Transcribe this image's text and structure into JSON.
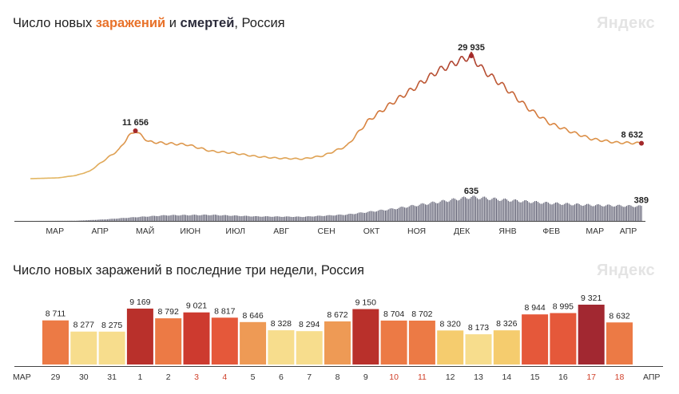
{
  "top": {
    "title_prefix": "Число новых ",
    "title_cases": "заражений",
    "title_and": " и ",
    "title_deaths": "смертей",
    "title_suffix": ", Россия",
    "brand": "Яндекс"
  },
  "bottom": {
    "title": "Число новых заражений в последние три недели, Россия",
    "brand": "Яндекс"
  },
  "colors": {
    "cases_low": "#e3b864",
    "cases_mid": "#d9823e",
    "cases_high": "#a8382d",
    "deaths_bar": "#5a5a6e",
    "axis": "#444444",
    "peak_dot": "#a3282a"
  },
  "chart_data": [
    {
      "type": "line",
      "title": "Число новых заражений и смертей, Россия",
      "x_ticks": [
        "МАР",
        "АПР",
        "МАЙ",
        "ИЮН",
        "ИЮЛ",
        "АВГ",
        "СЕН",
        "ОКТ",
        "НОЯ",
        "ДЕК",
        "ЯНВ",
        "ФЕВ",
        "МАР",
        "АПР"
      ],
      "x_range": [
        "2020-03-01",
        "2021-04-18"
      ],
      "series": [
        {
          "name": "заражений",
          "points": [
            [
              "2020-03-01",
              0
            ],
            [
              "2020-03-20",
              200
            ],
            [
              "2020-04-01",
              800
            ],
            [
              "2020-04-10",
              1800
            ],
            [
              "2020-04-20",
              4500
            ],
            [
              "2020-04-30",
              7100
            ],
            [
              "2020-05-06",
              10200
            ],
            [
              "2020-05-11",
              11656
            ],
            [
              "2020-05-20",
              9000
            ],
            [
              "2020-06-01",
              8600
            ],
            [
              "2020-06-15",
              8300
            ],
            [
              "2020-07-01",
              6700
            ],
            [
              "2020-07-15",
              6300
            ],
            [
              "2020-08-01",
              5400
            ],
            [
              "2020-08-15",
              5000
            ],
            [
              "2020-09-01",
              4800
            ],
            [
              "2020-09-15",
              5600
            ],
            [
              "2020-10-01",
              8000
            ],
            [
              "2020-10-15",
              14000
            ],
            [
              "2020-11-01",
              18600
            ],
            [
              "2020-11-15",
              22000
            ],
            [
              "2020-12-01",
              26200
            ],
            [
              "2020-12-15",
              28600
            ],
            [
              "2020-12-24",
              29935
            ],
            [
              "2021-01-01",
              26500
            ],
            [
              "2021-01-15",
              22500
            ],
            [
              "2021-02-01",
              17000
            ],
            [
              "2021-02-15",
              13500
            ],
            [
              "2021-03-01",
              11500
            ],
            [
              "2021-03-15",
              9700
            ],
            [
              "2021-04-01",
              8800
            ],
            [
              "2021-04-18",
              8632
            ]
          ]
        },
        {
          "name": "смертей",
          "points": [
            [
              "2020-03-01",
              0
            ],
            [
              "2020-04-01",
              5
            ],
            [
              "2020-04-20",
              40
            ],
            [
              "2020-05-11",
              100
            ],
            [
              "2020-06-01",
              150
            ],
            [
              "2020-07-01",
              160
            ],
            [
              "2020-08-01",
              120
            ],
            [
              "2020-09-01",
              110
            ],
            [
              "2020-10-01",
              170
            ],
            [
              "2020-11-01",
              320
            ],
            [
              "2020-12-01",
              500
            ],
            [
              "2020-12-24",
              635
            ],
            [
              "2021-01-15",
              560
            ],
            [
              "2021-02-15",
              470
            ],
            [
              "2021-03-15",
              420
            ],
            [
              "2021-04-18",
              389
            ]
          ]
        }
      ],
      "annotations": [
        {
          "label": "11 656",
          "date": "2020-05-11",
          "value": 11656,
          "series": "заражений"
        },
        {
          "label": "29 935",
          "date": "2020-12-24",
          "value": 29935,
          "series": "заражений"
        },
        {
          "label": "8 632",
          "date": "2021-04-18",
          "value": 8632,
          "series": "заражений"
        },
        {
          "label": "635",
          "date": "2020-12-24",
          "value": 635,
          "series": "смертей"
        },
        {
          "label": "389",
          "date": "2021-04-18",
          "value": 389,
          "series": "смертей"
        }
      ]
    },
    {
      "type": "bar",
      "title": "Число новых заражений в последние три недели, Россия",
      "axis_start": "МАР",
      "axis_end": "АПР",
      "categories": [
        "29",
        "30",
        "31",
        "1",
        "2",
        "3",
        "4",
        "5",
        "6",
        "7",
        "8",
        "9",
        "10",
        "11",
        "12",
        "13",
        "14",
        "15",
        "16",
        "17",
        "18"
      ],
      "labels": [
        "8 711",
        "8 277",
        "8 275",
        "9 169",
        "8 792",
        "9 021",
        "8 817",
        "8 646",
        "8 328",
        "8 294",
        "8 672",
        "9 150",
        "8 704",
        "8 702",
        "8 320",
        "8 173",
        "8 326",
        "8 944",
        "8 995",
        "9 321",
        "8 632"
      ],
      "values": [
        8711,
        8277,
        8275,
        9169,
        8792,
        9021,
        8817,
        8646,
        8328,
        8294,
        8672,
        9150,
        8704,
        8702,
        8320,
        8173,
        8326,
        8944,
        8995,
        9321,
        8632
      ],
      "weekend_categories": [
        "3",
        "4",
        "10",
        "11",
        "17",
        "18"
      ],
      "bar_colors": [
        "#ec7a45",
        "#f7dd8d",
        "#f7dd8d",
        "#b9302b",
        "#ec7a45",
        "#cd3a2f",
        "#e5583a",
        "#ee9a55",
        "#f7dd8d",
        "#f7dd8d",
        "#ee9a55",
        "#b9302b",
        "#ec7a45",
        "#ec7a45",
        "#f5cc6e",
        "#f7dd8d",
        "#f5cc6e",
        "#e5583a",
        "#e5583a",
        "#a22831",
        "#ec7a45"
      ]
    }
  ]
}
